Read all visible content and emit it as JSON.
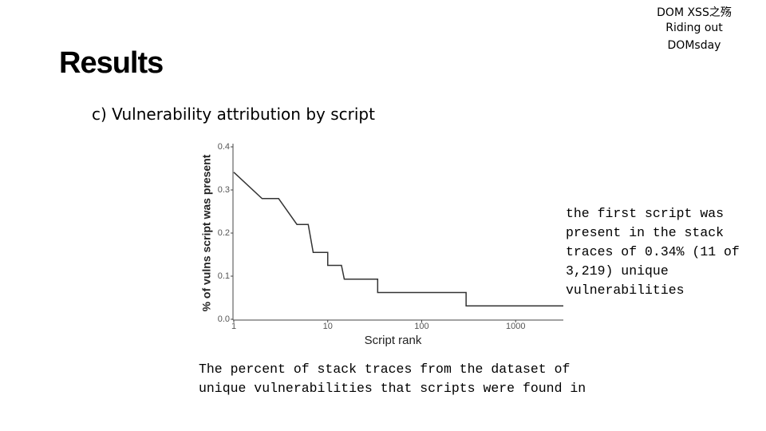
{
  "slide": {
    "corner": [
      "DOM XSS之殇",
      "Riding out",
      "DOMsday"
    ],
    "title": "Results",
    "subtitle": "c) Vulnerability attribution by script",
    "annotation": [
      "the first script was",
      "present in the stack",
      "traces of 0.34% (11 of",
      "3,219) unique",
      "vulnerabilities"
    ],
    "caption": [
      "The percent of stack traces from the dataset of",
      "unique vulnerabilities that scripts were found in"
    ]
  },
  "chart_data": {
    "type": "line",
    "xlabel": "Script rank",
    "ylabel": "% of vulns script was present",
    "xscale": "log",
    "color": "#333333",
    "x": [
      1,
      2,
      3,
      4.7,
      6.2,
      7,
      10,
      10,
      14,
      15,
      34,
      34,
      297,
      297,
      3219
    ],
    "values": [
      0.341,
      0.28,
      0.28,
      0.22,
      0.22,
      0.155,
      0.155,
      0.125,
      0.125,
      0.093,
      0.093,
      0.062,
      0.062,
      0.031,
      0.031
    ],
    "xlim": [
      1,
      3219
    ],
    "xticks": [
      1,
      10,
      100,
      1000
    ],
    "ylim": [
      0,
      0.4
    ],
    "yticks": [
      {
        "value": 0,
        "label": "0.0"
      },
      0.1,
      0.2,
      0.3,
      0.4
    ]
  }
}
